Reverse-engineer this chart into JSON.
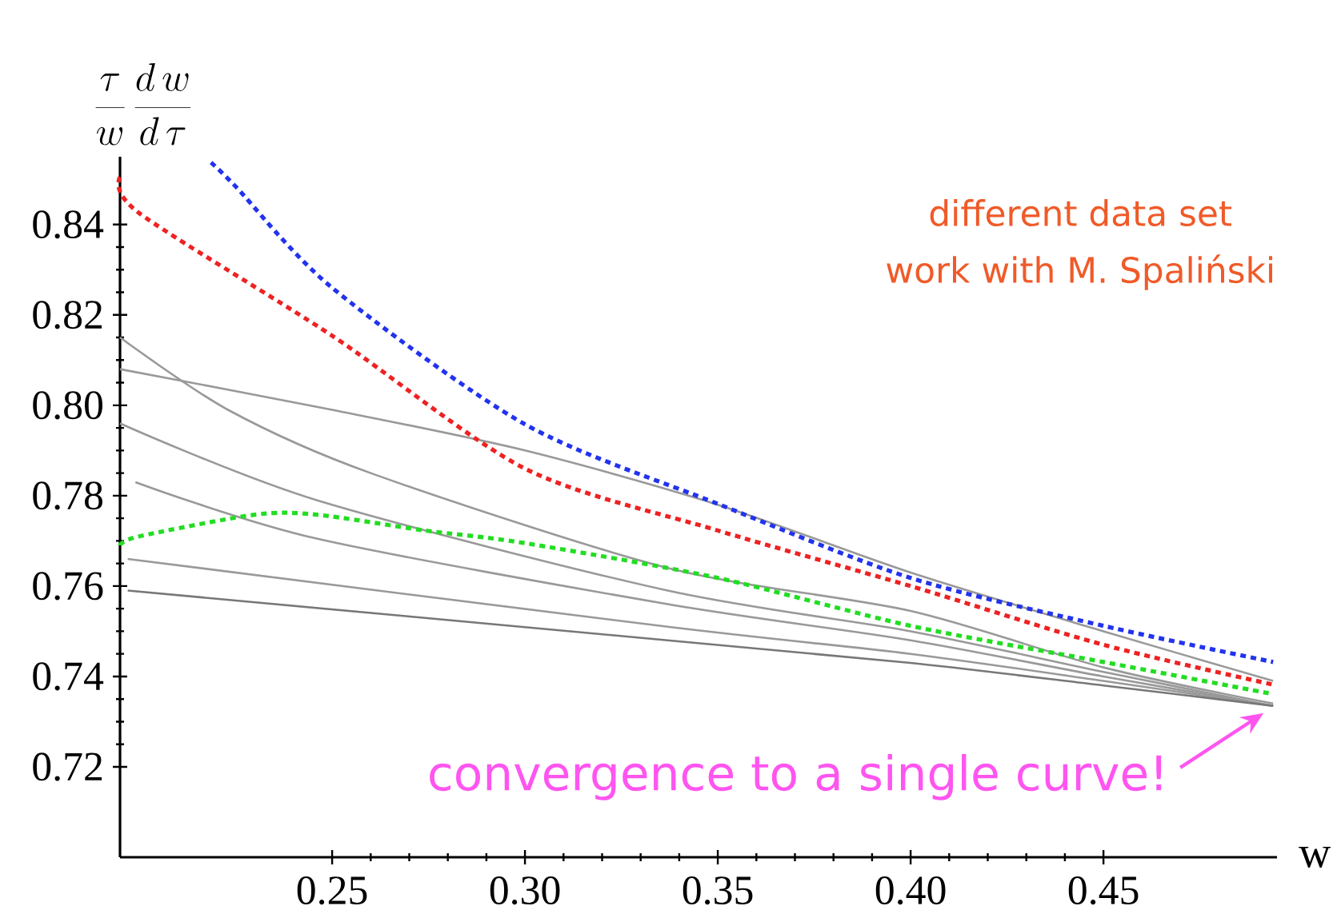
{
  "chart_data": {
    "type": "line",
    "xlabel": "w",
    "ylabel": "\\frac{\\tau}{w}\\,\\frac{d\\,w}{d\\,\\tau}",
    "xlim": [
      0.195,
      0.495
    ],
    "ylim": [
      0.7,
      0.855
    ],
    "xticks": [
      0.25,
      {
        "value": 0.3,
        "label": "0.30"
      },
      0.35,
      {
        "value": 0.4,
        "label": "0.40"
      },
      0.45
    ],
    "yticks": [
      0.72,
      0.74,
      0.76,
      0.78,
      {
        "value": 0.8,
        "label": "0.80"
      },
      0.82,
      0.84
    ],
    "annotations": [
      "different data set",
      "work with M. Spaliński",
      {
        "text": "convergence to a single curve!",
        "x": 0.494,
        "y": 0.734
      }
    ],
    "series": [
      {
        "color": "#999999",
        "line_style": "solid",
        "x": [
          0.195,
          0.223,
          0.26,
          0.337,
          0.4,
          0.45,
          0.494
        ],
        "values": [
          0.815,
          0.799,
          0.785,
          0.764,
          0.7545,
          0.742,
          0.734
        ]
      },
      {
        "color": "#999999",
        "line_style": "solid",
        "x": [
          0.195,
          0.25,
          0.3,
          0.35,
          0.4,
          0.45,
          0.494
        ],
        "values": [
          0.808,
          0.799,
          0.79,
          0.778,
          0.763,
          0.75,
          0.739
        ]
      },
      {
        "color": "#999999",
        "line_style": "solid",
        "x": [
          0.195,
          0.246,
          0.337,
          0.4,
          0.45,
          0.494
        ],
        "values": [
          0.796,
          0.779,
          0.759,
          0.75,
          0.741,
          0.7335
        ]
      },
      {
        "color": "#999999",
        "line_style": "solid",
        "x": [
          0.199,
          0.246,
          0.337,
          0.4,
          0.45,
          0.494
        ],
        "values": [
          0.783,
          0.7705,
          0.756,
          0.748,
          0.74,
          0.7335
        ]
      },
      {
        "color": "#999999",
        "line_style": "solid",
        "x": [
          0.197,
          0.337,
          0.4,
          0.45,
          0.494
        ],
        "values": [
          0.766,
          0.751,
          0.745,
          0.739,
          0.7335
        ]
      },
      {
        "color": "#777777",
        "line_style": "solid",
        "x": [
          0.197,
          0.337,
          0.4,
          0.45,
          0.494
        ],
        "values": [
          0.759,
          0.748,
          0.743,
          0.738,
          0.7335
        ]
      },
      {
        "color": "#22dd22",
        "line_style": "dotted",
        "x": [
          0.195,
          0.2,
          0.23,
          0.246,
          0.274,
          0.3,
          0.35,
          0.4,
          0.45,
          0.494
        ],
        "values": [
          0.769,
          0.771,
          0.7758,
          0.7758,
          0.7723,
          0.7695,
          0.7618,
          0.7512,
          0.7432,
          0.7361
        ]
      },
      {
        "color": "#ee2222",
        "line_style": "dotted",
        "x": [
          0.195,
          0.2,
          0.25,
          0.3,
          0.35,
          0.4,
          0.45,
          0.494
        ],
        "values": [
          0.8505,
          0.8425,
          0.8154,
          0.786,
          0.7723,
          0.76,
          0.747,
          0.7382
        ]
      },
      {
        "color": "#2233ee",
        "line_style": "dotted",
        "x": [
          0.2186,
          0.225,
          0.25,
          0.3,
          0.35,
          0.4,
          0.45,
          0.494
        ],
        "values": [
          0.8537,
          0.8484,
          0.826,
          0.7958,
          0.7782,
          0.7618,
          0.7512,
          0.7432
        ]
      }
    ]
  }
}
